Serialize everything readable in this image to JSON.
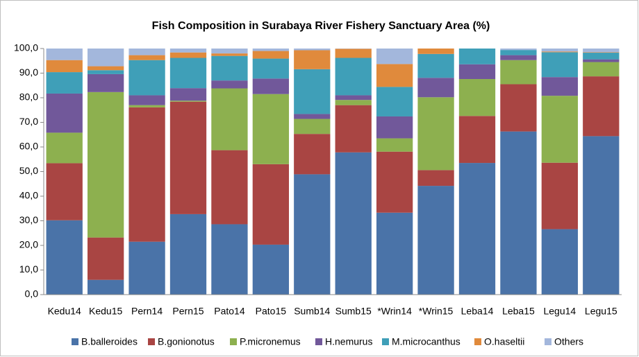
{
  "chart_data": {
    "type": "stacked_bar",
    "title": "Fish Composition in Surabaya River Fishery Sanctuary Area (%)",
    "categories": [
      "Kedu14",
      "Kedu15",
      "Pern14",
      "Pern15",
      "Pato14",
      "Pato15",
      "Sumb14",
      "Sumb15",
      "*Wrin14",
      "*Wrin15",
      "Leba14",
      "Leba15",
      "Legu14",
      "Legu15"
    ],
    "series": [
      {
        "name": "B.balleroides",
        "color": "#4a73a8",
        "values": [
          30.2,
          6.0,
          21.5,
          32.7,
          28.6,
          20.3,
          48.9,
          57.8,
          33.3,
          44.2,
          53.5,
          66.3,
          26.6,
          64.4
        ]
      },
      {
        "name": "B.gonionotus",
        "color": "#a94543",
        "values": [
          23.2,
          17.2,
          54.6,
          45.7,
          30.1,
          32.7,
          16.4,
          19.2,
          24.8,
          6.4,
          19.1,
          19.2,
          27.0,
          24.3
        ]
      },
      {
        "name": "P.micronemus",
        "color": "#8db04f",
        "values": [
          12.4,
          59.1,
          0.9,
          0.4,
          25.1,
          28.5,
          6.1,
          2.1,
          5.4,
          29.6,
          15.0,
          9.8,
          27.2,
          5.8
        ]
      },
      {
        "name": "H.nemurus",
        "color": "#71589a",
        "values": [
          15.9,
          7.3,
          4.0,
          5.1,
          3.2,
          6.3,
          2.0,
          1.9,
          8.9,
          7.9,
          6.0,
          2.0,
          7.6,
          1.1
        ]
      },
      {
        "name": "M.microcanthus",
        "color": "#3f9fb8",
        "values": [
          8.7,
          1.6,
          14.3,
          12.3,
          10.0,
          8.1,
          18.2,
          15.2,
          12.0,
          9.7,
          6.4,
          2.1,
          10.1,
          2.7
        ]
      },
      {
        "name": "O.haseltii",
        "color": "#e08a3c",
        "values": [
          4.9,
          1.6,
          2.0,
          2.2,
          1.0,
          3.1,
          7.7,
          3.7,
          9.3,
          2.2,
          0,
          0,
          0.3,
          0.2
        ]
      },
      {
        "name": "Others",
        "color": "#a3b7dc",
        "values": [
          4.7,
          7.2,
          2.7,
          1.6,
          2.0,
          1.0,
          0.7,
          0.1,
          6.3,
          0,
          0,
          0.6,
          1.2,
          1.5
        ]
      }
    ],
    "ylim": [
      0,
      100
    ],
    "yticks": [
      {
        "value": 0,
        "label": "0,0"
      },
      {
        "value": 10,
        "label": "10,0"
      },
      {
        "value": 20,
        "label": "20,0"
      },
      {
        "value": 30,
        "label": "30,0"
      },
      {
        "value": 40,
        "label": "40,0"
      },
      {
        "value": 50,
        "label": "50,0"
      },
      {
        "value": 60,
        "label": "60,0"
      },
      {
        "value": 70,
        "label": "70,0"
      },
      {
        "value": 80,
        "label": "80,0"
      },
      {
        "value": 90,
        "label": "90,0"
      },
      {
        "value": {
          "value": 100,
          "label": "100,0"
        },
        "label": "100,0"
      }
    ],
    "legend": "bottom"
  }
}
